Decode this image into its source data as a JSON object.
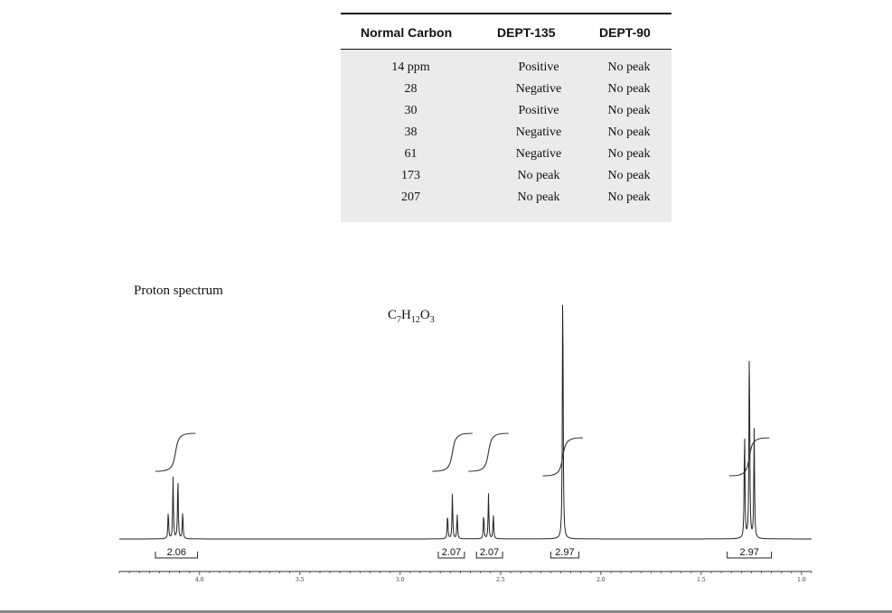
{
  "dept_table": {
    "headers": [
      "Normal Carbon",
      "DEPT-135",
      "DEPT-90"
    ],
    "rows": [
      [
        "14 ppm",
        "Positive",
        "No peak"
      ],
      [
        "28",
        "Negative",
        "No peak"
      ],
      [
        "30",
        "Positive",
        "No peak"
      ],
      [
        "38",
        "Negative",
        "No peak"
      ],
      [
        "61",
        "Negative",
        "No peak"
      ],
      [
        "173",
        "No peak",
        "No peak"
      ],
      [
        "207",
        "No peak",
        "No peak"
      ]
    ]
  },
  "spectrum": {
    "title": "Proton spectrum",
    "formula": {
      "c": "C",
      "c_n": "7",
      "h": "H",
      "h_n": "12",
      "o": "O",
      "o_n": "3"
    }
  },
  "chart_data": {
    "type": "line",
    "title": "Proton spectrum",
    "xlabel": "",
    "ylabel": "",
    "xlim": [
      4.4,
      0.95
    ],
    "x_reversed": true,
    "tick_labels": [
      "4.0",
      "3.5",
      "3.0",
      "2.5",
      "2.0",
      "1.5",
      "1.0"
    ],
    "tick_values": [
      4.0,
      3.5,
      3.0,
      2.5,
      2.0,
      1.5,
      1.0
    ],
    "peaks": [
      {
        "shift": 4.12,
        "multiplicity": "quartet",
        "rel_height": 0.23
      },
      {
        "shift": 2.74,
        "multiplicity": "triplet",
        "rel_height": 0.17
      },
      {
        "shift": 2.56,
        "multiplicity": "triplet",
        "rel_height": 0.17
      },
      {
        "shift": 2.19,
        "multiplicity": "singlet",
        "rel_height": 1.0
      },
      {
        "shift": 1.26,
        "multiplicity": "triplet",
        "rel_height": 0.74
      }
    ],
    "integrations": [
      {
        "label": "2.06",
        "from": 4.22,
        "to": 4.01
      },
      {
        "label": "2.07",
        "from": 2.81,
        "to": 2.68
      },
      {
        "label": "2.07",
        "from": 2.62,
        "to": 2.49
      },
      {
        "label": "2.97",
        "from": 2.25,
        "to": 2.11
      },
      {
        "label": "2.97",
        "from": 1.37,
        "to": 1.15
      }
    ]
  }
}
